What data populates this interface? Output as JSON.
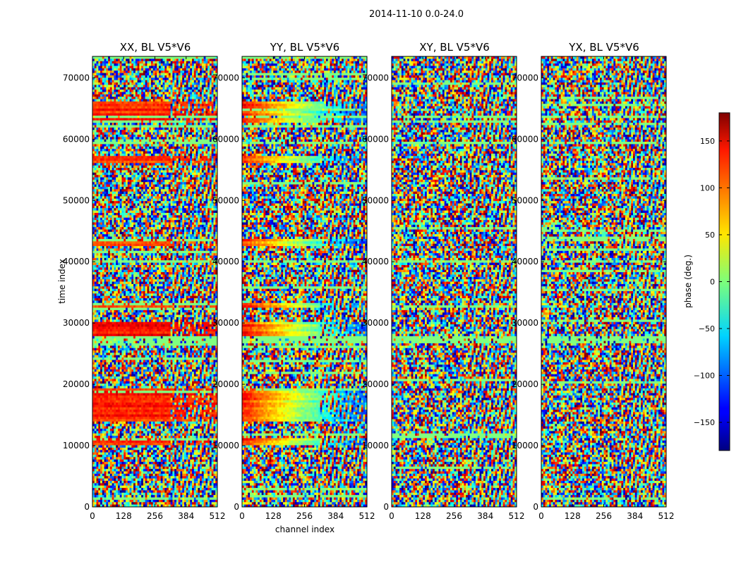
{
  "chart_data": {
    "type": "heatmap",
    "suptitle": "2014-11-10 0.0-24.0",
    "xlabel": "channel index",
    "ylabel": "time index",
    "xlim": [
      0,
      512
    ],
    "ylim": [
      0,
      73500
    ],
    "xticks": [
      0,
      128,
      256,
      384,
      512
    ],
    "yticks": [
      0,
      10000,
      20000,
      30000,
      40000,
      50000,
      60000,
      70000
    ],
    "panels": [
      {
        "title": "XX, BL V5*V6",
        "pol": "XX"
      },
      {
        "title": "YY, BL V5*V6",
        "pol": "YY"
      },
      {
        "title": "XY, BL V5*V6",
        "pol": "XY"
      },
      {
        "title": "YX, BL V5*V6",
        "pol": "YX"
      }
    ],
    "colorbar": {
      "label": "phase (deg.)",
      "range": [
        -180,
        180
      ],
      "ticks": [
        -150,
        -100,
        -50,
        0,
        50,
        100,
        150
      ],
      "colormap": "jet"
    },
    "features": {
      "coherent_bands_time_index": [
        [
          10200,
          11200
        ],
        [
          14000,
          19500
        ],
        [
          28000,
          30200
        ],
        [
          32500,
          33300
        ],
        [
          42500,
          43800
        ],
        [
          56000,
          57300
        ],
        [
          62700,
          63600
        ],
        [
          63800,
          66300
        ]
      ],
      "flagged_bands_time_index": [
        [
          26800,
          28000
        ],
        [
          39800,
          40200
        ],
        [
          63300,
          63700
        ],
        [
          59000,
          59400
        ],
        [
          1800,
          2100
        ]
      ],
      "flat_channel_start": 320
    }
  }
}
